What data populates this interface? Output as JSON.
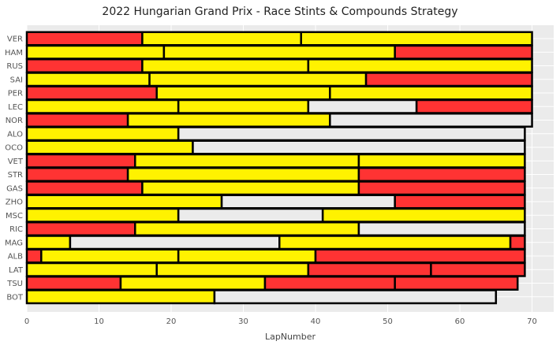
{
  "chart_data": {
    "type": "bar",
    "orientation": "horizontal-stacked",
    "title": "2022 Hungarian Grand Prix - Race Stints & Compounds Strategy",
    "xlabel": "LapNumber",
    "ylabel": "",
    "xlim": [
      0,
      73
    ],
    "xticks": [
      0,
      10,
      20,
      30,
      40,
      50,
      60,
      70
    ],
    "grid": true,
    "compound_colors": {
      "SOFT": "#ff3333",
      "MEDIUM": "#fff200",
      "HARD": "#ebebeb"
    },
    "drivers": [
      {
        "driver": "VER",
        "stints": [
          {
            "compound": "SOFT",
            "laps": 16
          },
          {
            "compound": "MEDIUM",
            "laps": 22
          },
          {
            "compound": "MEDIUM",
            "laps": 32
          }
        ]
      },
      {
        "driver": "HAM",
        "stints": [
          {
            "compound": "MEDIUM",
            "laps": 19
          },
          {
            "compound": "MEDIUM",
            "laps": 32
          },
          {
            "compound": "SOFT",
            "laps": 19
          }
        ]
      },
      {
        "driver": "RUS",
        "stints": [
          {
            "compound": "SOFT",
            "laps": 16
          },
          {
            "compound": "MEDIUM",
            "laps": 23
          },
          {
            "compound": "MEDIUM",
            "laps": 31
          }
        ]
      },
      {
        "driver": "SAI",
        "stints": [
          {
            "compound": "MEDIUM",
            "laps": 17
          },
          {
            "compound": "MEDIUM",
            "laps": 30
          },
          {
            "compound": "SOFT",
            "laps": 23
          }
        ]
      },
      {
        "driver": "PER",
        "stints": [
          {
            "compound": "SOFT",
            "laps": 18
          },
          {
            "compound": "MEDIUM",
            "laps": 24
          },
          {
            "compound": "MEDIUM",
            "laps": 28
          }
        ]
      },
      {
        "driver": "LEC",
        "stints": [
          {
            "compound": "MEDIUM",
            "laps": 21
          },
          {
            "compound": "MEDIUM",
            "laps": 18
          },
          {
            "compound": "HARD",
            "laps": 15
          },
          {
            "compound": "SOFT",
            "laps": 16
          }
        ]
      },
      {
        "driver": "NOR",
        "stints": [
          {
            "compound": "SOFT",
            "laps": 14
          },
          {
            "compound": "MEDIUM",
            "laps": 28
          },
          {
            "compound": "HARD",
            "laps": 28
          }
        ]
      },
      {
        "driver": "ALO",
        "stints": [
          {
            "compound": "MEDIUM",
            "laps": 21
          },
          {
            "compound": "HARD",
            "laps": 48
          }
        ]
      },
      {
        "driver": "OCO",
        "stints": [
          {
            "compound": "MEDIUM",
            "laps": 23
          },
          {
            "compound": "HARD",
            "laps": 46
          }
        ]
      },
      {
        "driver": "VET",
        "stints": [
          {
            "compound": "SOFT",
            "laps": 15
          },
          {
            "compound": "MEDIUM",
            "laps": 31
          },
          {
            "compound": "MEDIUM",
            "laps": 23
          }
        ]
      },
      {
        "driver": "STR",
        "stints": [
          {
            "compound": "SOFT",
            "laps": 14
          },
          {
            "compound": "MEDIUM",
            "laps": 32
          },
          {
            "compound": "SOFT",
            "laps": 23
          }
        ]
      },
      {
        "driver": "GAS",
        "stints": [
          {
            "compound": "SOFT",
            "laps": 16
          },
          {
            "compound": "MEDIUM",
            "laps": 30
          },
          {
            "compound": "SOFT",
            "laps": 23
          }
        ]
      },
      {
        "driver": "ZHO",
        "stints": [
          {
            "compound": "MEDIUM",
            "laps": 27
          },
          {
            "compound": "HARD",
            "laps": 24
          },
          {
            "compound": "SOFT",
            "laps": 18
          }
        ]
      },
      {
        "driver": "MSC",
        "stints": [
          {
            "compound": "MEDIUM",
            "laps": 21
          },
          {
            "compound": "HARD",
            "laps": 20
          },
          {
            "compound": "MEDIUM",
            "laps": 28
          }
        ]
      },
      {
        "driver": "RIC",
        "stints": [
          {
            "compound": "SOFT",
            "laps": 15
          },
          {
            "compound": "MEDIUM",
            "laps": 31
          },
          {
            "compound": "HARD",
            "laps": 23
          }
        ]
      },
      {
        "driver": "MAG",
        "stints": [
          {
            "compound": "MEDIUM",
            "laps": 6
          },
          {
            "compound": "HARD",
            "laps": 29
          },
          {
            "compound": "MEDIUM",
            "laps": 32
          },
          {
            "compound": "SOFT",
            "laps": 2
          }
        ]
      },
      {
        "driver": "ALB",
        "stints": [
          {
            "compound": "SOFT",
            "laps": 2
          },
          {
            "compound": "MEDIUM",
            "laps": 19
          },
          {
            "compound": "MEDIUM",
            "laps": 19
          },
          {
            "compound": "SOFT",
            "laps": 29
          }
        ]
      },
      {
        "driver": "LAT",
        "stints": [
          {
            "compound": "MEDIUM",
            "laps": 18
          },
          {
            "compound": "MEDIUM",
            "laps": 21
          },
          {
            "compound": "SOFT",
            "laps": 17
          },
          {
            "compound": "SOFT",
            "laps": 13
          }
        ]
      },
      {
        "driver": "TSU",
        "stints": [
          {
            "compound": "SOFT",
            "laps": 13
          },
          {
            "compound": "MEDIUM",
            "laps": 20
          },
          {
            "compound": "SOFT",
            "laps": 18
          },
          {
            "compound": "SOFT",
            "laps": 17
          }
        ]
      },
      {
        "driver": "BOT",
        "stints": [
          {
            "compound": "MEDIUM",
            "laps": 26
          },
          {
            "compound": "HARD",
            "laps": 39
          }
        ]
      }
    ]
  }
}
